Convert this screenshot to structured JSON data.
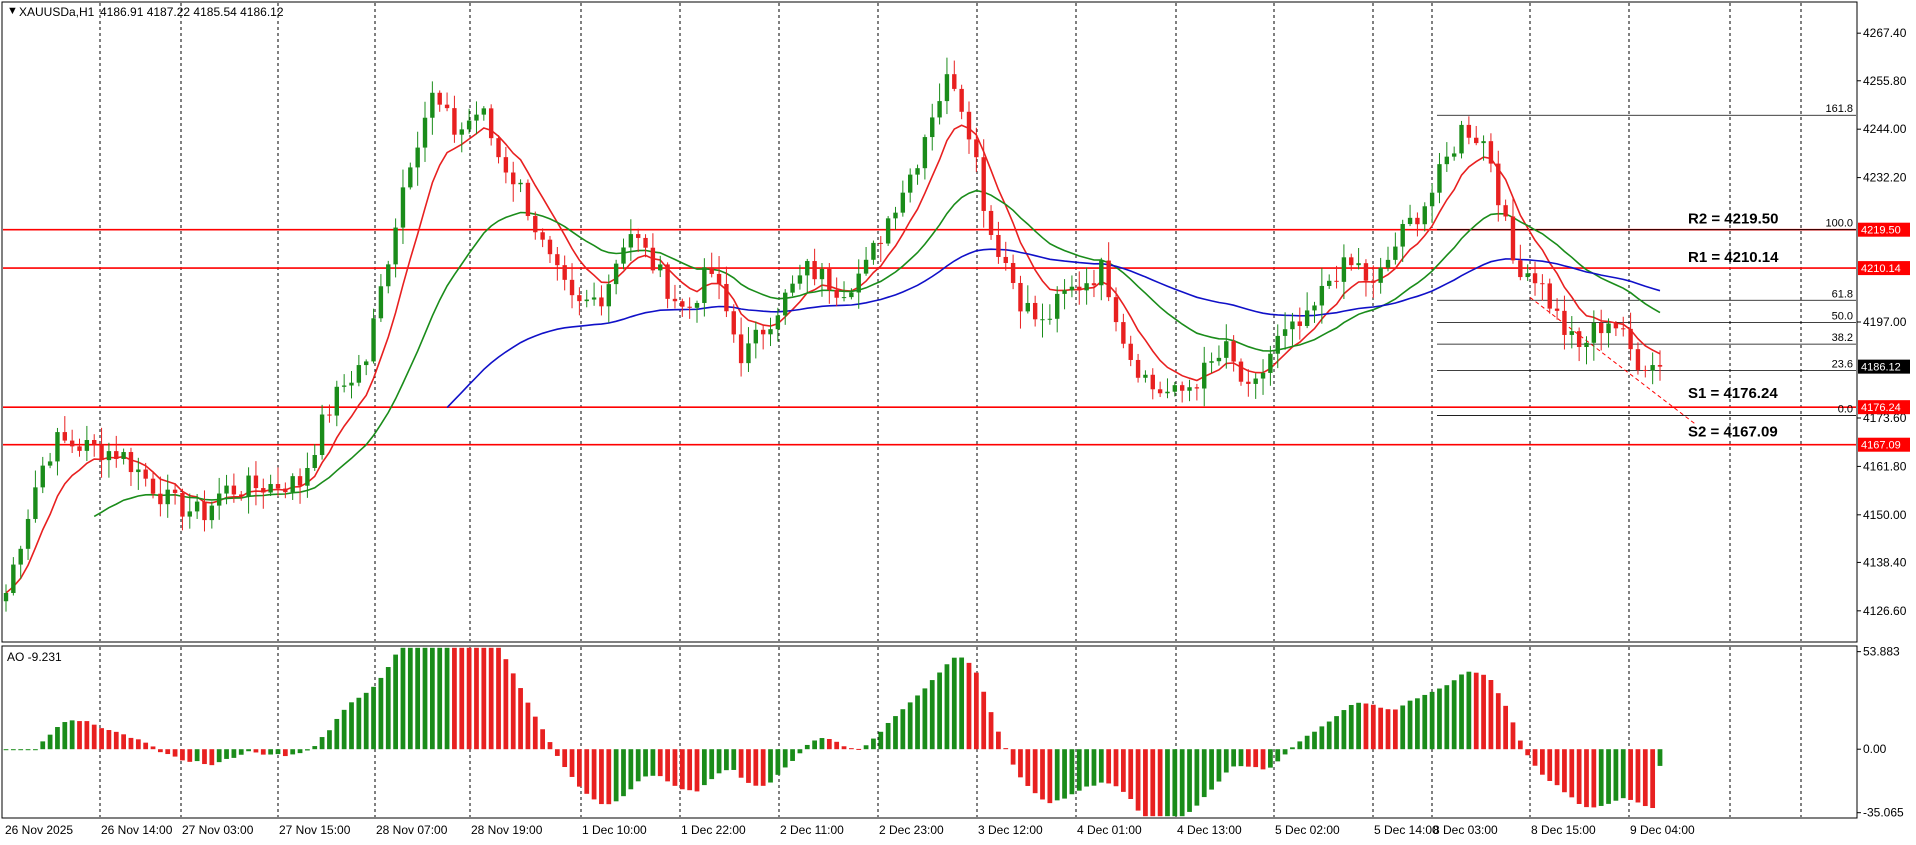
{
  "symbol": {
    "header": "XAUUSDa,H1",
    "ohlc": "4186.91 4187.22 4185.54 4186.12",
    "current_price": "4186.12"
  },
  "price_axis": {
    "labels": [
      "4267.40",
      "4255.80",
      "4244.00",
      "4232.20",
      "4197.00",
      "4173.60",
      "4161.80",
      "4150.00",
      "4138.40",
      "4126.60"
    ],
    "label_values": [
      4267.4,
      4255.8,
      4244.0,
      4232.2,
      4197.0,
      4173.6,
      4161.8,
      4150.0,
      4138.4,
      4126.6
    ],
    "ylim": [
      4119.0,
      4275.0
    ]
  },
  "levels": [
    {
      "key": "R2",
      "label": "R2 = 4219.50",
      "tag": "4219.50",
      "value": 4219.5
    },
    {
      "key": "R1",
      "label": "R1 = 4210.14",
      "tag": "4210.14",
      "value": 4210.14
    },
    {
      "key": "S1",
      "label": "S1 = 4176.24",
      "tag": "4176.24",
      "value": 4176.24
    },
    {
      "key": "S2",
      "label": "S2 = 4167.09",
      "tag": "4167.09",
      "value": 4167.09
    }
  ],
  "fibonacci": [
    {
      "label": "161.8",
      "value": 4247.4
    },
    {
      "label": "100.0",
      "value": 4219.5
    },
    {
      "label": "61.8",
      "value": 4202.3
    },
    {
      "label": "50.0",
      "value": 4196.9
    },
    {
      "label": "38.2",
      "value": 4191.6
    },
    {
      "label": "23.6",
      "value": 4185.2
    },
    {
      "label": "0.0",
      "value": 4174.2
    }
  ],
  "time_axis": {
    "labels": [
      "26 Nov 2025",
      "26 Nov 14:00",
      "27 Nov 03:00",
      "27 Nov 15:00",
      "28 Nov 07:00",
      "28 Nov 19:00",
      "1 Dec 10:00",
      "1 Dec 22:00",
      "2 Dec 11:00",
      "2 Dec 23:00",
      "3 Dec 12:00",
      "4 Dec 01:00",
      "4 Dec 13:00",
      "5 Dec 02:00",
      "5 Dec 14:00",
      "8 Dec 03:00",
      "8 Dec 15:00",
      "9 Dec 04:00"
    ]
  },
  "oscillator": {
    "header": "AO -9.231",
    "axis_labels": [
      "53.883",
      "0.00",
      "-35.065"
    ],
    "axis_values": [
      53.883,
      0.0,
      -35.065
    ],
    "ylim": [
      -38.0,
      57.0
    ]
  },
  "colors": {
    "bull": "#1a8c1a",
    "bear": "#e82020",
    "level": "#ff0000",
    "ma_fast": "#e82020",
    "ma_mid": "#1a8c1a",
    "ma_slow": "#1010c8",
    "grid": "#000000",
    "tag_current_bg": "#000000"
  },
  "chart_data": {
    "type": "candlestick",
    "timeframe": "H1",
    "bars": 226,
    "anchors": [
      [
        0,
        4131
      ],
      [
        8,
        4160
      ],
      [
        12,
        4168
      ],
      [
        28,
        4165
      ],
      [
        40,
        4153
      ],
      [
        48,
        4150
      ],
      [
        53,
        4156
      ],
      [
        72,
        4158
      ],
      [
        78,
        4174
      ],
      [
        82,
        4181
      ],
      [
        88,
        4188
      ],
      [
        98,
        4235
      ],
      [
        104,
        4252
      ],
      [
        110,
        4243
      ],
      [
        116,
        4249
      ],
      [
        120,
        4238
      ],
      [
        126,
        4229
      ],
      [
        132,
        4213
      ],
      [
        139,
        4200
      ],
      [
        146,
        4204
      ],
      [
        152,
        4220
      ],
      [
        160,
        4208
      ],
      [
        166,
        4199
      ],
      [
        172,
        4210
      ],
      [
        180,
        4188
      ],
      [
        188,
        4200
      ],
      [
        196,
        4210
      ],
      [
        204,
        4205
      ],
      [
        210,
        4210
      ],
      [
        218,
        4228
      ],
      [
        222,
        4235
      ],
      [
        226,
        4248
      ],
      [
        231,
        4258
      ],
      [
        236,
        4242
      ],
      [
        240,
        4220
      ],
      [
        244,
        4212
      ],
      [
        248,
        4202
      ],
      [
        253,
        4196
      ],
      [
        258,
        4203
      ],
      [
        262,
        4206
      ],
      [
        268,
        4210
      ],
      [
        274,
        4190
      ],
      [
        280,
        4181
      ],
      [
        286,
        4179
      ],
      [
        292,
        4184
      ],
      [
        298,
        4190
      ],
      [
        304,
        4178
      ],
      [
        310,
        4192
      ],
      [
        318,
        4197
      ],
      [
        324,
        4209
      ],
      [
        330,
        4211
      ],
      [
        334,
        4205
      ],
      [
        340,
        4217
      ],
      [
        348,
        4228
      ],
      [
        356,
        4245
      ],
      [
        362,
        4240
      ],
      [
        368,
        4212
      ],
      [
        374,
        4208
      ],
      [
        380,
        4196
      ],
      [
        384,
        4190
      ],
      [
        388,
        4195
      ],
      [
        392,
        4198
      ],
      [
        398,
        4188
      ],
      [
        404,
        4186
      ]
    ],
    "moving_averages": [
      {
        "period_hint": "fast",
        "color": "#e82020"
      },
      {
        "period_hint": "mid",
        "color": "#1a8c1a"
      },
      {
        "period_hint": "slow",
        "color": "#1010c8"
      }
    ]
  }
}
